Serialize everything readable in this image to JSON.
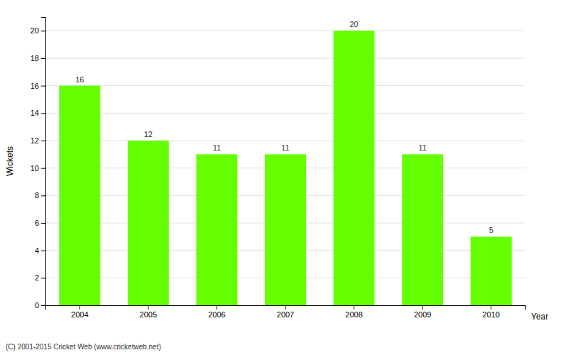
{
  "chart_data": {
    "type": "bar",
    "categories": [
      "2004",
      "2005",
      "2006",
      "2007",
      "2008",
      "2009",
      "2010"
    ],
    "values": [
      16,
      12,
      11,
      11,
      20,
      11,
      5
    ],
    "color": "#66ff00",
    "xlabel": "Year",
    "ylabel": "Wickets",
    "ylim": [
      0,
      21
    ],
    "yticks": [
      0,
      2,
      4,
      6,
      8,
      10,
      12,
      14,
      16,
      18,
      20
    ],
    "grid": true,
    "data_labels": true,
    "footer": "(C) 2001-2015 Cricket Web (www.cricketweb.net)"
  }
}
